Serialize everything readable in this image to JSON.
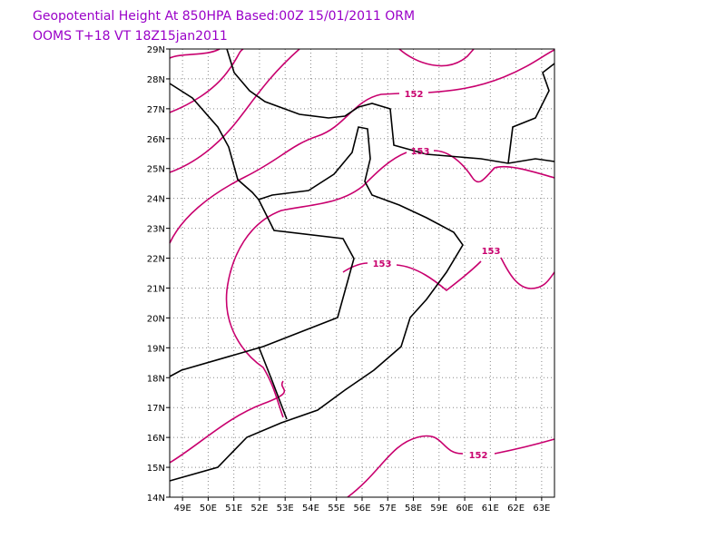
{
  "title": [
    "Geopotential Height At 850HPA Based:00Z 15/01/2011 ORM",
    "OOMS T+18 VT 18Z15jan2011"
  ],
  "map": {
    "lon_range": [
      48.5,
      63.5
    ],
    "lat_range": [
      14,
      29
    ],
    "lon_ticks": [
      {
        "value": 49,
        "label": "49E"
      },
      {
        "value": 50,
        "label": "50E"
      },
      {
        "value": 51,
        "label": "51E"
      },
      {
        "value": 52,
        "label": "52E"
      },
      {
        "value": 53,
        "label": "53E"
      },
      {
        "value": 54,
        "label": "54E"
      },
      {
        "value": 55,
        "label": "55E"
      },
      {
        "value": 56,
        "label": "56E"
      },
      {
        "value": 57,
        "label": "57E"
      },
      {
        "value": 58,
        "label": "58E"
      },
      {
        "value": 59,
        "label": "59E"
      },
      {
        "value": 60,
        "label": "60E"
      },
      {
        "value": 61,
        "label": "61E"
      },
      {
        "value": 62,
        "label": "62E"
      },
      {
        "value": 63,
        "label": "63E"
      }
    ],
    "lat_ticks": [
      {
        "value": 14,
        "label": "14N"
      },
      {
        "value": 15,
        "label": "15N"
      },
      {
        "value": 16,
        "label": "16N"
      },
      {
        "value": 17,
        "label": "17N"
      },
      {
        "value": 18,
        "label": "18N"
      },
      {
        "value": 19,
        "label": "19N"
      },
      {
        "value": 20,
        "label": "20N"
      },
      {
        "value": 21,
        "label": "21N"
      },
      {
        "value": 22,
        "label": "22N"
      },
      {
        "value": 23,
        "label": "23N"
      },
      {
        "value": 24,
        "label": "24N"
      },
      {
        "value": 25,
        "label": "25N"
      },
      {
        "value": 26,
        "label": "26N"
      },
      {
        "value": 27,
        "label": "27N"
      },
      {
        "value": 28,
        "label": "28N"
      },
      {
        "value": 29,
        "label": "29N"
      }
    ],
    "contour_labels": [
      "152",
      "153",
      "153",
      "153",
      "152"
    ]
  }
}
